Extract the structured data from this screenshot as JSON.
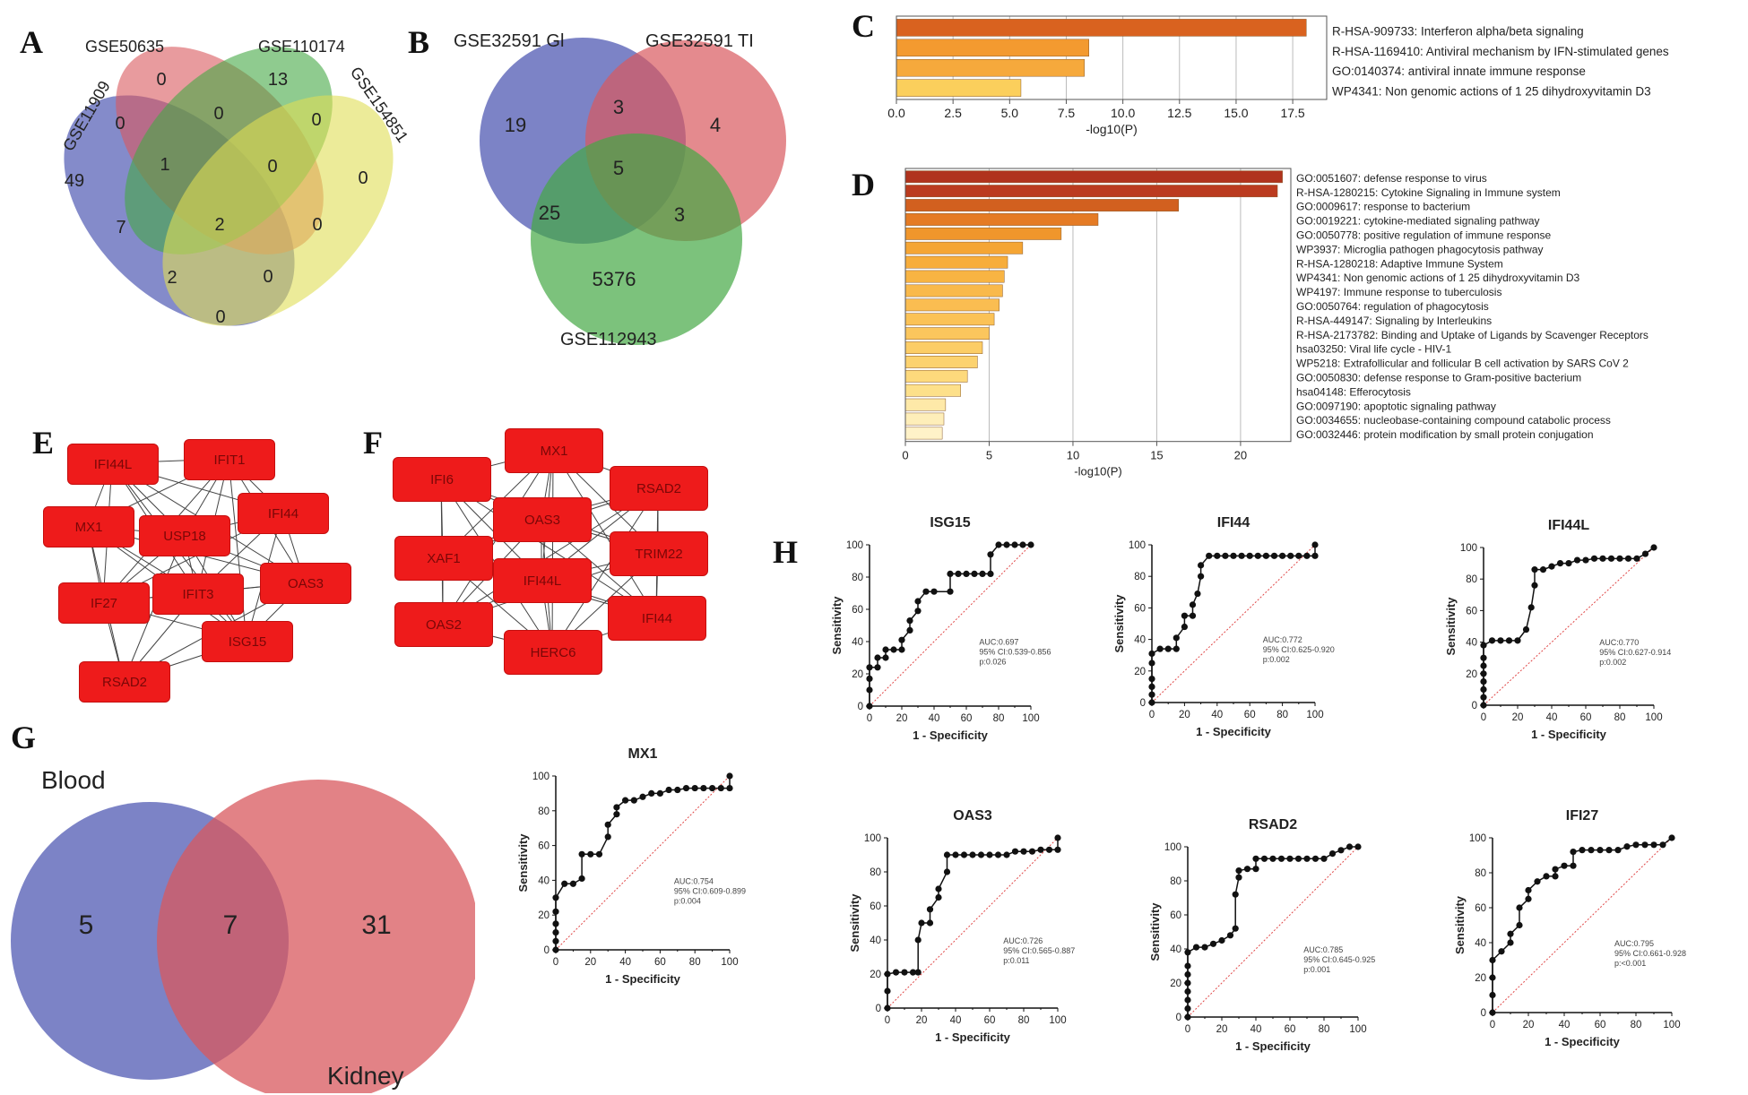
{
  "panels": {
    "a": {
      "label": "A",
      "sets": [
        "GSE11909",
        "GSE50635",
        "GSE110174",
        "GSE154851"
      ],
      "counts": [
        {
          "value": "0",
          "set_colors": [
            "#d8585e"
          ]
        },
        {
          "value": "13",
          "set_colors": [
            "#45a845"
          ]
        },
        {
          "value": "0",
          "set_colors": [
            "#e0dd55"
          ]
        },
        {
          "value": "49",
          "set_colors": [
            "#5b64b8"
          ]
        },
        {
          "value": "0",
          "set_colors": []
        },
        {
          "value": "0",
          "set_colors": []
        },
        {
          "value": "0",
          "set_colors": []
        },
        {
          "value": "1",
          "set_colors": []
        },
        {
          "value": "0",
          "set_colors": []
        },
        {
          "value": "7",
          "set_colors": []
        },
        {
          "value": "2",
          "set_colors": []
        },
        {
          "value": "0",
          "set_colors": []
        },
        {
          "value": "2",
          "set_colors": []
        },
        {
          "value": "0",
          "set_colors": []
        },
        {
          "value": "0",
          "set_colors": []
        }
      ]
    },
    "b": {
      "label": "B",
      "sets": [
        "GSE32591 Gl",
        "GSE32591 TI",
        "GSE112943"
      ],
      "counts": [
        "19",
        "4",
        "3",
        "5",
        "25",
        "3",
        "5376"
      ]
    },
    "c": {
      "label": "C",
      "xlabel": "-log10(P)",
      "ticks": [
        "0.0",
        "2.5",
        "5.0",
        "7.5",
        "10.0",
        "12.5",
        "15.0",
        "17.5"
      ],
      "xlim": [
        0,
        19
      ]
    },
    "d": {
      "label": "D",
      "xlabel": "-log10(P)",
      "ticks": [
        "0",
        "5",
        "10",
        "15",
        "20"
      ],
      "xlim": [
        0,
        23
      ]
    },
    "e": {
      "label": "E",
      "nodes": [
        "IFI44L",
        "IFIT1",
        "MX1",
        "USP18",
        "IFI44",
        "IF27",
        "IFIT3",
        "OAS3",
        "ISG15",
        "RSAD2"
      ]
    },
    "f": {
      "label": "F",
      "nodes": [
        "MX1",
        "IFI6",
        "RSAD2",
        "OAS3",
        "XAF1",
        "TRIM22",
        "IFI44L",
        "OAS2",
        "IFI44",
        "HERC6"
      ]
    },
    "g": {
      "label": "G",
      "sets": [
        "Blood",
        "Kidney"
      ],
      "counts": [
        "5",
        "7",
        "31"
      ]
    },
    "h": {
      "label": "H"
    }
  },
  "chart_data": [
    {
      "panel": "C",
      "type": "bar",
      "orientation": "horizontal",
      "categories": [
        "R-HSA-909733: Interferon alpha/beta signaling",
        "R-HSA-1169410: Antiviral mechanism by IFN-stimulated genes",
        "GO:0140374: antiviral innate immune response",
        "WP4341: Non genomic actions of 1 25 dihydroxyvitamin D3"
      ],
      "values": [
        18.1,
        8.5,
        8.3,
        5.5
      ],
      "colors": [
        "#d9621f",
        "#f39a30",
        "#f6a93c",
        "#fbcf5c"
      ],
      "xlabel": "-log10(P)",
      "xlim": [
        0,
        19
      ],
      "grid": true
    },
    {
      "panel": "D",
      "type": "bar",
      "orientation": "horizontal",
      "categories": [
        "GO:0051607: defense response to virus",
        "R-HSA-1280215: Cytokine Signaling in Immune system",
        "GO:0009617: response to bacterium",
        "GO:0019221: cytokine-mediated signaling pathway",
        "GO:0050778: positive regulation of immune response",
        "WP3937: Microglia pathogen phagocytosis pathway",
        "R-HSA-1280218: Adaptive Immune System",
        "WP4341: Non genomic actions of 1 25 dihydroxyvitamin D3",
        "WP4197: Immune response to tuberculosis",
        "GO:0050764: regulation of phagocytosis",
        "R-HSA-449147: Signaling by Interleukins",
        "R-HSA-2173782: Binding and Uptake of Ligands by Scavenger Receptors",
        "hsa03250: Viral life cycle - HIV-1",
        "WP5218: Extrafollicular and follicular B cell activation by SARS CoV 2",
        "GO:0050830: defense response to Gram-positive bacterium",
        "hsa04148: Efferocytosis",
        "GO:0097190: apoptotic signaling pathway",
        "GO:0034655: nucleobase-containing compound catabolic process",
        "GO:0032446: protein modification by small protein conjugation"
      ],
      "values": [
        22.5,
        22.2,
        16.3,
        11.5,
        9.3,
        7.0,
        6.1,
        5.9,
        5.8,
        5.6,
        5.3,
        5.0,
        4.6,
        4.3,
        3.7,
        3.3,
        2.4,
        2.3,
        2.2
      ],
      "colors": [
        "#b0331d",
        "#bb3b1f",
        "#d2601f",
        "#e57b24",
        "#f0962c",
        "#f5a534",
        "#f7ad3b",
        "#f8b443",
        "#f9b94b",
        "#fabd51",
        "#fbc256",
        "#fbc65d",
        "#fccd66",
        "#fcd26f",
        "#fdd97c",
        "#fde08a",
        "#fee9a8",
        "#feeeb9",
        "#fff2c8"
      ],
      "xlabel": "-log10(P)",
      "xlim": [
        0,
        23
      ],
      "grid": true
    },
    {
      "panel": "H",
      "type": "line",
      "title": "ISG15",
      "xlabel": "1 - Specificity",
      "ylabel": "Sensitivity",
      "xlim": [
        0,
        100
      ],
      "ylim": [
        0,
        100
      ],
      "annotation": [
        "AUC:0.697",
        "95% CI:0.539-0.856",
        "p:0.026"
      ],
      "x": [
        0,
        0,
        0,
        0,
        5,
        5,
        10,
        10,
        15,
        20,
        20,
        25,
        25,
        30,
        30,
        35,
        40,
        50,
        50,
        55,
        60,
        65,
        70,
        75,
        75,
        80,
        85,
        90,
        95,
        100
      ],
      "y": [
        0,
        10,
        17,
        24,
        24,
        30,
        30,
        35,
        35,
        35,
        41,
        47,
        53,
        59,
        65,
        71,
        71,
        71,
        82,
        82,
        82,
        82,
        82,
        82,
        94,
        100,
        100,
        100,
        100,
        100
      ]
    },
    {
      "panel": "H",
      "type": "line",
      "title": "IFI44",
      "xlabel": "1 - Specificity",
      "ylabel": "Sensitivity",
      "xlim": [
        0,
        100
      ],
      "ylim": [
        0,
        100
      ],
      "annotation": [
        "AUC:0.772",
        "95% CI:0.625-0.920",
        "p:0.002"
      ],
      "x": [
        0,
        0,
        0,
        0,
        0,
        0,
        5,
        10,
        15,
        15,
        20,
        20,
        25,
        25,
        28,
        30,
        30,
        35,
        40,
        45,
        50,
        55,
        60,
        65,
        70,
        75,
        80,
        85,
        90,
        95,
        100,
        100
      ],
      "y": [
        0,
        5,
        10,
        15,
        25,
        31,
        34,
        34,
        34,
        41,
        48,
        55,
        55,
        62,
        69,
        80,
        87,
        93,
        93,
        93,
        93,
        93,
        93,
        93,
        93,
        93,
        93,
        93,
        93,
        93,
        93,
        100
      ]
    },
    {
      "panel": "H",
      "type": "line",
      "title": "IFI44L",
      "xlabel": "1 - Specificity",
      "ylabel": "Sensitivity",
      "xlim": [
        0,
        100
      ],
      "ylim": [
        0,
        100
      ],
      "annotation": [
        "AUC:0.770",
        "95% CI:0.627-0.914",
        "p:0.002"
      ],
      "x": [
        0,
        0,
        0,
        0,
        0,
        0,
        0,
        0,
        5,
        10,
        15,
        20,
        25,
        28,
        30,
        30,
        35,
        40,
        45,
        50,
        55,
        60,
        65,
        70,
        75,
        80,
        85,
        90,
        95,
        100
      ],
      "y": [
        0,
        5,
        10,
        15,
        20,
        25,
        30,
        38,
        41,
        41,
        41,
        41,
        48,
        62,
        76,
        86,
        86,
        88,
        90,
        90,
        92,
        92,
        93,
        93,
        93,
        93,
        93,
        93,
        96,
        100
      ]
    },
    {
      "panel": "H",
      "type": "line",
      "title": "MX1",
      "xlabel": "1 - Specificity",
      "ylabel": "Sensitivity",
      "xlim": [
        0,
        100
      ],
      "ylim": [
        0,
        100
      ],
      "annotation": [
        "AUC:0.754",
        "95% CI:0.609-0.899",
        "p:0.004"
      ],
      "x": [
        0,
        0,
        0,
        0,
        0,
        0,
        5,
        10,
        15,
        15,
        20,
        25,
        30,
        30,
        35,
        35,
        40,
        45,
        50,
        55,
        60,
        65,
        70,
        75,
        80,
        85,
        90,
        95,
        100,
        100
      ],
      "y": [
        0,
        5,
        10,
        15,
        22,
        30,
        38,
        38,
        41,
        55,
        55,
        55,
        65,
        72,
        78,
        82,
        86,
        86,
        88,
        90,
        90,
        92,
        92,
        93,
        93,
        93,
        93,
        93,
        93,
        100
      ]
    },
    {
      "panel": "H",
      "type": "line",
      "title": "OAS3",
      "xlabel": "1 - Specificity",
      "ylabel": "Sensitivity",
      "xlim": [
        0,
        100
      ],
      "ylim": [
        0,
        100
      ],
      "annotation": [
        "AUC:0.726",
        "95% CI:0.565-0.887",
        "p:0.011"
      ],
      "x": [
        0,
        0,
        0,
        5,
        10,
        15,
        18,
        18,
        20,
        25,
        25,
        30,
        30,
        35,
        35,
        40,
        45,
        50,
        55,
        60,
        65,
        70,
        75,
        80,
        85,
        90,
        95,
        100,
        100
      ],
      "y": [
        0,
        10,
        20,
        21,
        21,
        21,
        21,
        40,
        50,
        50,
        58,
        65,
        70,
        80,
        90,
        90,
        90,
        90,
        90,
        90,
        90,
        90,
        92,
        92,
        92,
        93,
        93,
        93,
        100
      ]
    },
    {
      "panel": "H",
      "type": "line",
      "title": "RSAD2",
      "xlabel": "1 - Specificity",
      "ylabel": "Sensitivity",
      "xlim": [
        0,
        100
      ],
      "ylim": [
        0,
        100
      ],
      "annotation": [
        "AUC:0.785",
        "95% CI:0.645-0.925",
        "p:0.001"
      ],
      "x": [
        0,
        0,
        0,
        0,
        0,
        0,
        0,
        0,
        5,
        10,
        15,
        20,
        25,
        28,
        28,
        30,
        30,
        35,
        40,
        40,
        45,
        50,
        55,
        60,
        65,
        70,
        75,
        80,
        85,
        90,
        95,
        100
      ],
      "y": [
        0,
        5,
        10,
        15,
        20,
        25,
        30,
        38,
        41,
        41,
        43,
        45,
        48,
        52,
        72,
        82,
        86,
        87,
        87,
        93,
        93,
        93,
        93,
        93,
        93,
        93,
        93,
        93,
        96,
        98,
        100,
        100
      ]
    },
    {
      "panel": "H",
      "type": "line",
      "title": "IFI27",
      "xlabel": "1 - Specificity",
      "ylabel": "Sensitivity",
      "xlim": [
        0,
        100
      ],
      "ylim": [
        0,
        100
      ],
      "annotation": [
        "AUC:0.795",
        "95% CI:0.661-0.928",
        "p:<0.001"
      ],
      "x": [
        0,
        0,
        0,
        0,
        5,
        10,
        10,
        15,
        15,
        20,
        20,
        25,
        30,
        35,
        35,
        40,
        45,
        45,
        50,
        55,
        60,
        65,
        70,
        75,
        80,
        85,
        90,
        95,
        100
      ],
      "y": [
        0,
        10,
        20,
        30,
        35,
        40,
        45,
        50,
        60,
        65,
        70,
        75,
        78,
        78,
        82,
        84,
        84,
        92,
        93,
        93,
        93,
        93,
        93,
        95,
        96,
        96,
        96,
        96,
        100
      ]
    }
  ]
}
